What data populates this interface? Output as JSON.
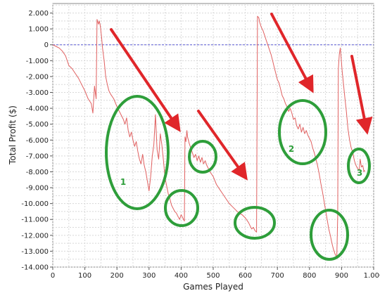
{
  "chart_data": {
    "type": "line",
    "xlabel": "Games Played",
    "ylabel": "Total Profit ($)",
    "xlim": [
      0,
      1000
    ],
    "ylim": [
      -14000,
      2600
    ],
    "grid": true,
    "x_ticks": [
      0,
      100,
      200,
      300,
      400,
      500,
      600,
      700,
      800,
      900,
      1000
    ],
    "x_tick_labels": [
      "0",
      "100",
      "200",
      "300",
      "400",
      "500",
      "600",
      "700",
      "800",
      "900",
      "1.000"
    ],
    "y_ticks": [
      2000,
      1000,
      0,
      -1000,
      -2000,
      -3000,
      -4000,
      -5000,
      -6000,
      -7000,
      -8000,
      -9000,
      -10000,
      -11000,
      -12000,
      -13000,
      -14000
    ],
    "y_tick_labels": [
      "2.000",
      "1.000",
      "0",
      "-1.000",
      "-2.000",
      "-3.000",
      "-4.000",
      "-5.000",
      "-6.000",
      "-7.000",
      "-8.000",
      "-9.000",
      "-10.000",
      "-11.000",
      "-12.000",
      "-13.000",
      "-14.000"
    ],
    "reference_line_y": 0,
    "series": [
      {
        "color": "#e06060",
        "points": [
          [
            0,
            0
          ],
          [
            10,
            -100
          ],
          [
            20,
            -200
          ],
          [
            30,
            -400
          ],
          [
            40,
            -700
          ],
          [
            50,
            -1300
          ],
          [
            60,
            -1500
          ],
          [
            70,
            -1800
          ],
          [
            80,
            -2100
          ],
          [
            90,
            -2500
          ],
          [
            100,
            -2900
          ],
          [
            110,
            -3400
          ],
          [
            120,
            -3700
          ],
          [
            125,
            -4300
          ],
          [
            130,
            -2600
          ],
          [
            135,
            -3400
          ],
          [
            138,
            1600
          ],
          [
            142,
            1300
          ],
          [
            145,
            1500
          ],
          [
            148,
            1200
          ],
          [
            152,
            500
          ],
          [
            155,
            -200
          ],
          [
            160,
            -1000
          ],
          [
            165,
            -2000
          ],
          [
            170,
            -2500
          ],
          [
            175,
            -2900
          ],
          [
            180,
            -3100
          ],
          [
            190,
            -3400
          ],
          [
            200,
            -3900
          ],
          [
            210,
            -4300
          ],
          [
            220,
            -4700
          ],
          [
            225,
            -5000
          ],
          [
            230,
            -4600
          ],
          [
            235,
            -5400
          ],
          [
            240,
            -5800
          ],
          [
            245,
            -5500
          ],
          [
            250,
            -6000
          ],
          [
            255,
            -6400
          ],
          [
            260,
            -6100
          ],
          [
            265,
            -6700
          ],
          [
            270,
            -7200
          ],
          [
            275,
            -7500
          ],
          [
            280,
            -6900
          ],
          [
            285,
            -7600
          ],
          [
            290,
            -8000
          ],
          [
            295,
            -8600
          ],
          [
            300,
            -9200
          ],
          [
            305,
            -8300
          ],
          [
            310,
            -7000
          ],
          [
            315,
            -6300
          ],
          [
            320,
            -4400
          ],
          [
            325,
            -6600
          ],
          [
            330,
            -7200
          ],
          [
            335,
            -5600
          ],
          [
            340,
            -6300
          ],
          [
            345,
            -7300
          ],
          [
            350,
            -8400
          ],
          [
            355,
            -8900
          ],
          [
            360,
            -9400
          ],
          [
            365,
            -9700
          ],
          [
            370,
            -10100
          ],
          [
            375,
            -10300
          ],
          [
            380,
            -10500
          ],
          [
            385,
            -10600
          ],
          [
            390,
            -10800
          ],
          [
            395,
            -11000
          ],
          [
            400,
            -10700
          ],
          [
            405,
            -10900
          ],
          [
            410,
            -11100
          ],
          [
            412,
            -5800
          ],
          [
            415,
            -6100
          ],
          [
            418,
            -5400
          ],
          [
            420,
            -5800
          ],
          [
            425,
            -6200
          ],
          [
            430,
            -6500
          ],
          [
            435,
            -6800
          ],
          [
            440,
            -7100
          ],
          [
            445,
            -6900
          ],
          [
            450,
            -7300
          ],
          [
            455,
            -7000
          ],
          [
            460,
            -7400
          ],
          [
            465,
            -7100
          ],
          [
            470,
            -7500
          ],
          [
            475,
            -7300
          ],
          [
            480,
            -7600
          ],
          [
            485,
            -7800
          ],
          [
            490,
            -8000
          ],
          [
            500,
            -8300
          ],
          [
            510,
            -8800
          ],
          [
            520,
            -9100
          ],
          [
            530,
            -9400
          ],
          [
            540,
            -9700
          ],
          [
            550,
            -10000
          ],
          [
            560,
            -10200
          ],
          [
            570,
            -10400
          ],
          [
            580,
            -10600
          ],
          [
            590,
            -10700
          ],
          [
            600,
            -10900
          ],
          [
            610,
            -11200
          ],
          [
            615,
            -11400
          ],
          [
            620,
            -11600
          ],
          [
            625,
            -11500
          ],
          [
            630,
            -11700
          ],
          [
            635,
            -11800
          ],
          [
            638,
            1800
          ],
          [
            642,
            1700
          ],
          [
            645,
            1400
          ],
          [
            650,
            1100
          ],
          [
            655,
            900
          ],
          [
            660,
            600
          ],
          [
            665,
            300
          ],
          [
            670,
            0
          ],
          [
            675,
            -300
          ],
          [
            680,
            -600
          ],
          [
            685,
            -1000
          ],
          [
            690,
            -1400
          ],
          [
            695,
            -1800
          ],
          [
            700,
            -2200
          ],
          [
            705,
            -2400
          ],
          [
            710,
            -2800
          ],
          [
            715,
            -3200
          ],
          [
            720,
            -3400
          ],
          [
            725,
            -3700
          ],
          [
            730,
            -3900
          ],
          [
            735,
            -4200
          ],
          [
            740,
            -4000
          ],
          [
            745,
            -4300
          ],
          [
            750,
            -4700
          ],
          [
            755,
            -4600
          ],
          [
            760,
            -5100
          ],
          [
            765,
            -5300
          ],
          [
            770,
            -5000
          ],
          [
            775,
            -5500
          ],
          [
            780,
            -5200
          ],
          [
            785,
            -5600
          ],
          [
            790,
            -5400
          ],
          [
            795,
            -5700
          ],
          [
            800,
            -5900
          ],
          [
            805,
            -6100
          ],
          [
            810,
            -6500
          ],
          [
            815,
            -6800
          ],
          [
            820,
            -7200
          ],
          [
            825,
            -7600
          ],
          [
            830,
            -8100
          ],
          [
            835,
            -8700
          ],
          [
            840,
            -9200
          ],
          [
            845,
            -9800
          ],
          [
            850,
            -10400
          ],
          [
            855,
            -11000
          ],
          [
            860,
            -11600
          ],
          [
            865,
            -12000
          ],
          [
            870,
            -12500
          ],
          [
            875,
            -12900
          ],
          [
            880,
            -13200
          ],
          [
            885,
            -13400
          ],
          [
            888,
            -10800
          ],
          [
            890,
            -1500
          ],
          [
            893,
            -600
          ],
          [
            896,
            -200
          ],
          [
            899,
            -900
          ],
          [
            902,
            -1700
          ],
          [
            905,
            -2300
          ],
          [
            910,
            -3300
          ],
          [
            915,
            -4200
          ],
          [
            920,
            -5300
          ],
          [
            925,
            -6000
          ],
          [
            930,
            -6500
          ],
          [
            935,
            -6800
          ],
          [
            940,
            -7300
          ],
          [
            945,
            -7600
          ],
          [
            950,
            -7800
          ],
          [
            955,
            -7900
          ],
          [
            958,
            -7200
          ],
          [
            962,
            -7700
          ],
          [
            966,
            -7600
          ],
          [
            970,
            -8000
          ],
          [
            972,
            -7900
          ]
        ]
      }
    ],
    "annotations": {
      "labels": [
        "1",
        "2",
        "3"
      ],
      "circle_color": "#2e9e3a",
      "arrow_color": "#e0262a"
    }
  }
}
